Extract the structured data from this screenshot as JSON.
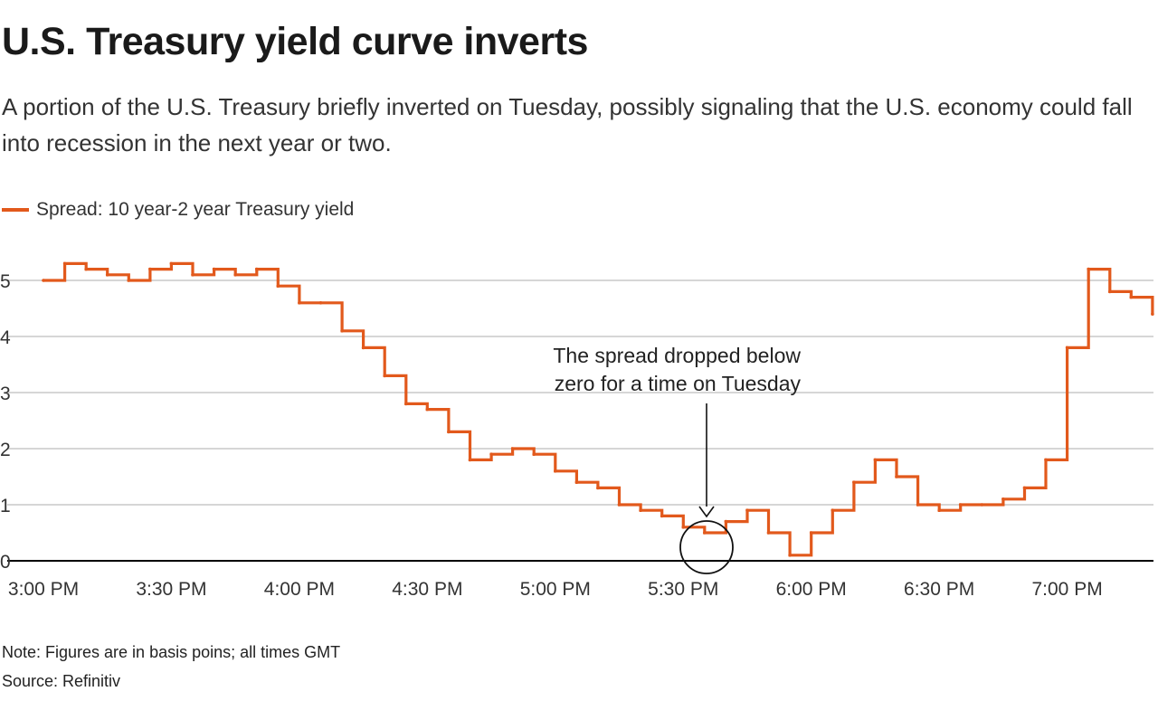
{
  "title": "U.S. Treasury yield curve inverts",
  "subtitle": "A portion of the U.S. Treasury briefly inverted on Tuesday, possibly signaling that the U.S. economy could fall into recession in the next year or two.",
  "note": "Note: Figures are in basis poins; all times GMT",
  "source": "Source: Refinitiv",
  "colors": {
    "series": "#e2591c",
    "grid": "#c8c8c8",
    "axis": "#000000"
  },
  "chart_data": {
    "type": "line",
    "legend": "top-left",
    "grid": true,
    "series": [
      {
        "name": "Spread: 10 year-2 year Treasury yield",
        "x": [
          "15:00",
          "15:05",
          "15:10",
          "15:15",
          "15:20",
          "15:25",
          "15:30",
          "15:35",
          "15:40",
          "15:45",
          "15:50",
          "15:55",
          "16:00",
          "16:05",
          "16:10",
          "16:15",
          "16:20",
          "16:25",
          "16:30",
          "16:35",
          "16:40",
          "16:45",
          "16:50",
          "16:55",
          "17:00",
          "17:05",
          "17:10",
          "17:15",
          "17:20",
          "17:25",
          "17:30",
          "17:35",
          "17:40",
          "17:45",
          "17:50",
          "17:55",
          "18:00",
          "18:05",
          "18:10",
          "18:15",
          "18:20",
          "18:25",
          "18:30",
          "18:35",
          "18:40",
          "18:45",
          "18:50",
          "18:55",
          "19:00",
          "19:05",
          "19:10",
          "19:15",
          "19:20"
        ],
        "values": [
          5.0,
          5.3,
          5.2,
          5.1,
          5.0,
          5.2,
          5.3,
          5.1,
          5.2,
          5.1,
          5.2,
          4.9,
          4.6,
          4.6,
          4.1,
          3.8,
          3.3,
          2.8,
          2.7,
          2.3,
          1.8,
          1.9,
          2.0,
          1.9,
          1.6,
          1.4,
          1.3,
          1.0,
          0.9,
          0.8,
          0.6,
          0.5,
          0.7,
          0.9,
          0.5,
          0.1,
          0.5,
          0.9,
          1.4,
          1.8,
          1.5,
          1.0,
          0.9,
          1.0,
          1.0,
          1.1,
          1.3,
          1.8,
          3.8,
          5.2,
          4.8,
          4.7,
          4.4
        ]
      }
    ],
    "x_ticks": [
      "3:00 PM",
      "3:30 PM",
      "4:00 PM",
      "4:30 PM",
      "5:00 PM",
      "5:30 PM",
      "6:00 PM",
      "6:30 PM",
      "7:00 PM"
    ],
    "y_ticks": [
      0,
      1,
      2,
      3,
      4,
      5
    ],
    "ylim": [
      0,
      5.5
    ],
    "annotation": {
      "lines": [
        "The  spread dropped below",
        "zero for a time on Tuesday"
      ]
    }
  }
}
